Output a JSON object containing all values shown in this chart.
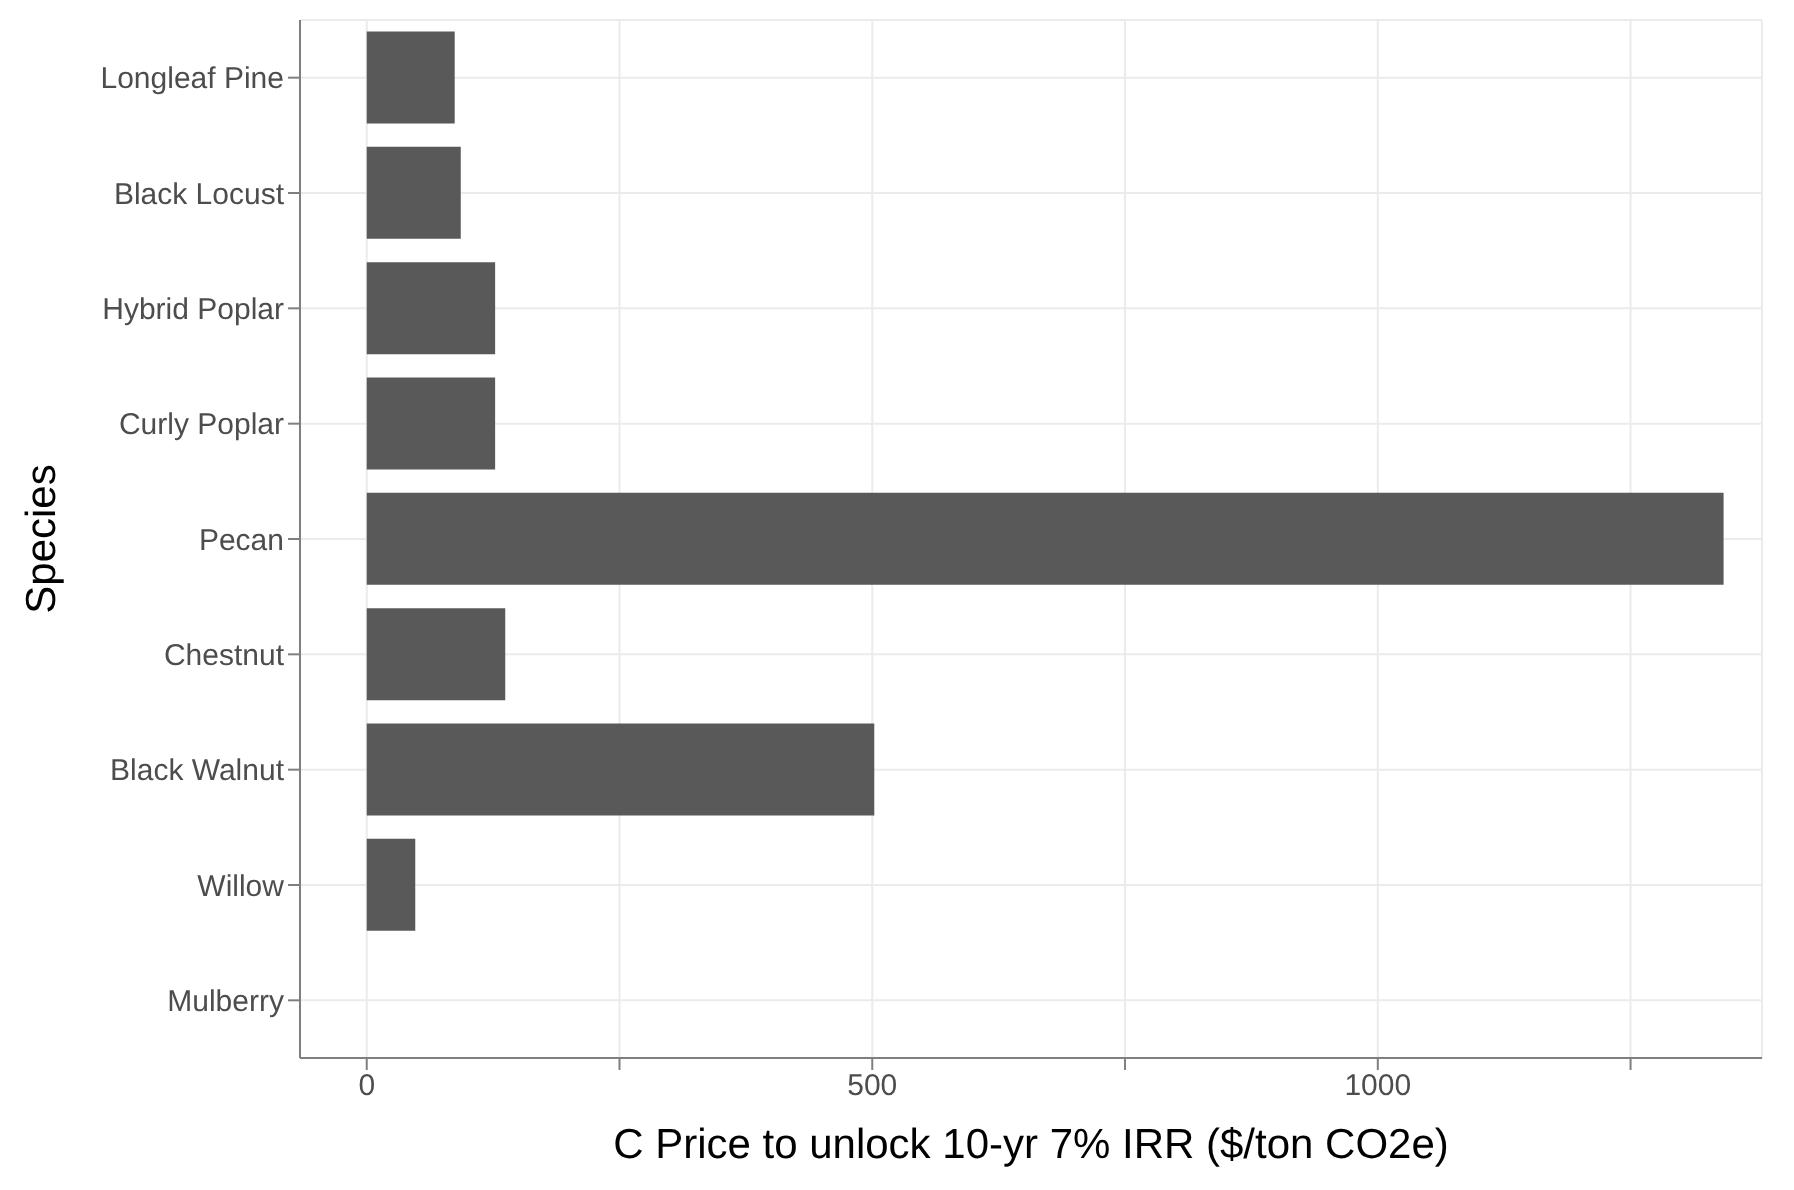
{
  "chart_data": {
    "type": "bar",
    "orientation": "horizontal",
    "xlabel": "C Price to unlock 10-yr 7% IRR ($/ton CO2e)",
    "ylabel": "Species",
    "categories": [
      "Longleaf Pine",
      "Black Locust",
      "Hybrid Poplar",
      "Curly Poplar",
      "Pecan",
      "Chestnut",
      "Black Walnut",
      "Willow",
      "Mulberry"
    ],
    "values": [
      87,
      93,
      127,
      127,
      1342,
      137,
      502,
      48,
      null
    ],
    "color": "#595959",
    "xlim": [
      -66,
      1380
    ],
    "xticks": [
      0,
      {
        "value": 250,
        "label": null
      },
      500,
      {
        "value": 750,
        "label": null
      },
      1000,
      {
        "value": 1250,
        "label": null
      }
    ],
    "grid": true,
    "legend": false
  }
}
